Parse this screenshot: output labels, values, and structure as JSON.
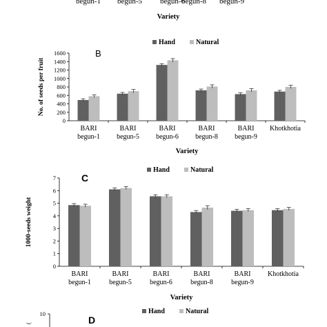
{
  "figure": {
    "colors": {
      "hand": "#606060",
      "natural": "#bdbdbd",
      "axis": "#000000"
    }
  },
  "top_partial": {
    "tick_labels": [
      "begun-1",
      "begun-5",
      "begun-6",
      "begun-8",
      "begun-9"
    ],
    "xlabel": "Variety"
  },
  "chart_data": [
    {
      "type": "bar",
      "panel": "B",
      "categories": [
        [
          "BARI",
          "begun-1"
        ],
        [
          "BARI",
          "begun-5"
        ],
        [
          "BARI",
          "begun-6"
        ],
        [
          "BARI",
          "begun-8"
        ],
        [
          "BARI",
          "begun-9"
        ],
        [
          "Khotkhotia"
        ]
      ],
      "series": [
        {
          "name": "Hand",
          "values": [
            490,
            640,
            1320,
            720,
            630,
            690
          ]
        },
        {
          "name": "Natural",
          "values": [
            580,
            700,
            1430,
            810,
            720,
            800
          ]
        }
      ],
      "errors": [
        [
          30,
          30,
          30,
          30,
          30,
          30
        ],
        [
          30,
          40,
          40,
          40,
          40,
          40
        ]
      ],
      "ylabel": "No. of seeds per fruit",
      "xlabel": "Variety",
      "ylim": [
        0,
        1600
      ],
      "yticks": [
        0,
        200,
        400,
        600,
        800,
        1000,
        1200,
        1400,
        1600
      ],
      "legend": "top-center",
      "grid": false
    },
    {
      "type": "bar",
      "panel": "C",
      "categories": [
        [
          "BARI",
          "begun-1"
        ],
        [
          "BARI",
          "begun-5"
        ],
        [
          "BARI",
          "begun-6"
        ],
        [
          "BARI",
          "begun-8"
        ],
        [
          "BARI",
          "begun-9"
        ],
        [
          "Khotkhotia"
        ]
      ],
      "series": [
        {
          "name": "Hand",
          "values": [
            4.85,
            6.1,
            5.55,
            4.3,
            4.4,
            4.45
          ]
        },
        {
          "name": "Natural",
          "values": [
            4.8,
            6.2,
            5.55,
            4.65,
            4.45,
            4.55
          ]
        }
      ],
      "errors": [
        [
          0.12,
          0.12,
          0.12,
          0.12,
          0.12,
          0.12
        ],
        [
          0.12,
          0.12,
          0.12,
          0.15,
          0.12,
          0.12
        ]
      ],
      "ylabel": "1000-seeds weight",
      "xlabel": "Variety",
      "ylim": [
        0,
        7
      ],
      "yticks": [
        0,
        1,
        2,
        3,
        4,
        5,
        6,
        7
      ],
      "legend": "top-center",
      "grid": false
    },
    {
      "type": "bar",
      "panel": "D",
      "categories": [],
      "series": [
        {
          "name": "Hand",
          "values": []
        },
        {
          "name": "Natural",
          "values": []
        }
      ],
      "yticks": [
        10
      ],
      "legend": "top-center",
      "partial": true
    }
  ]
}
